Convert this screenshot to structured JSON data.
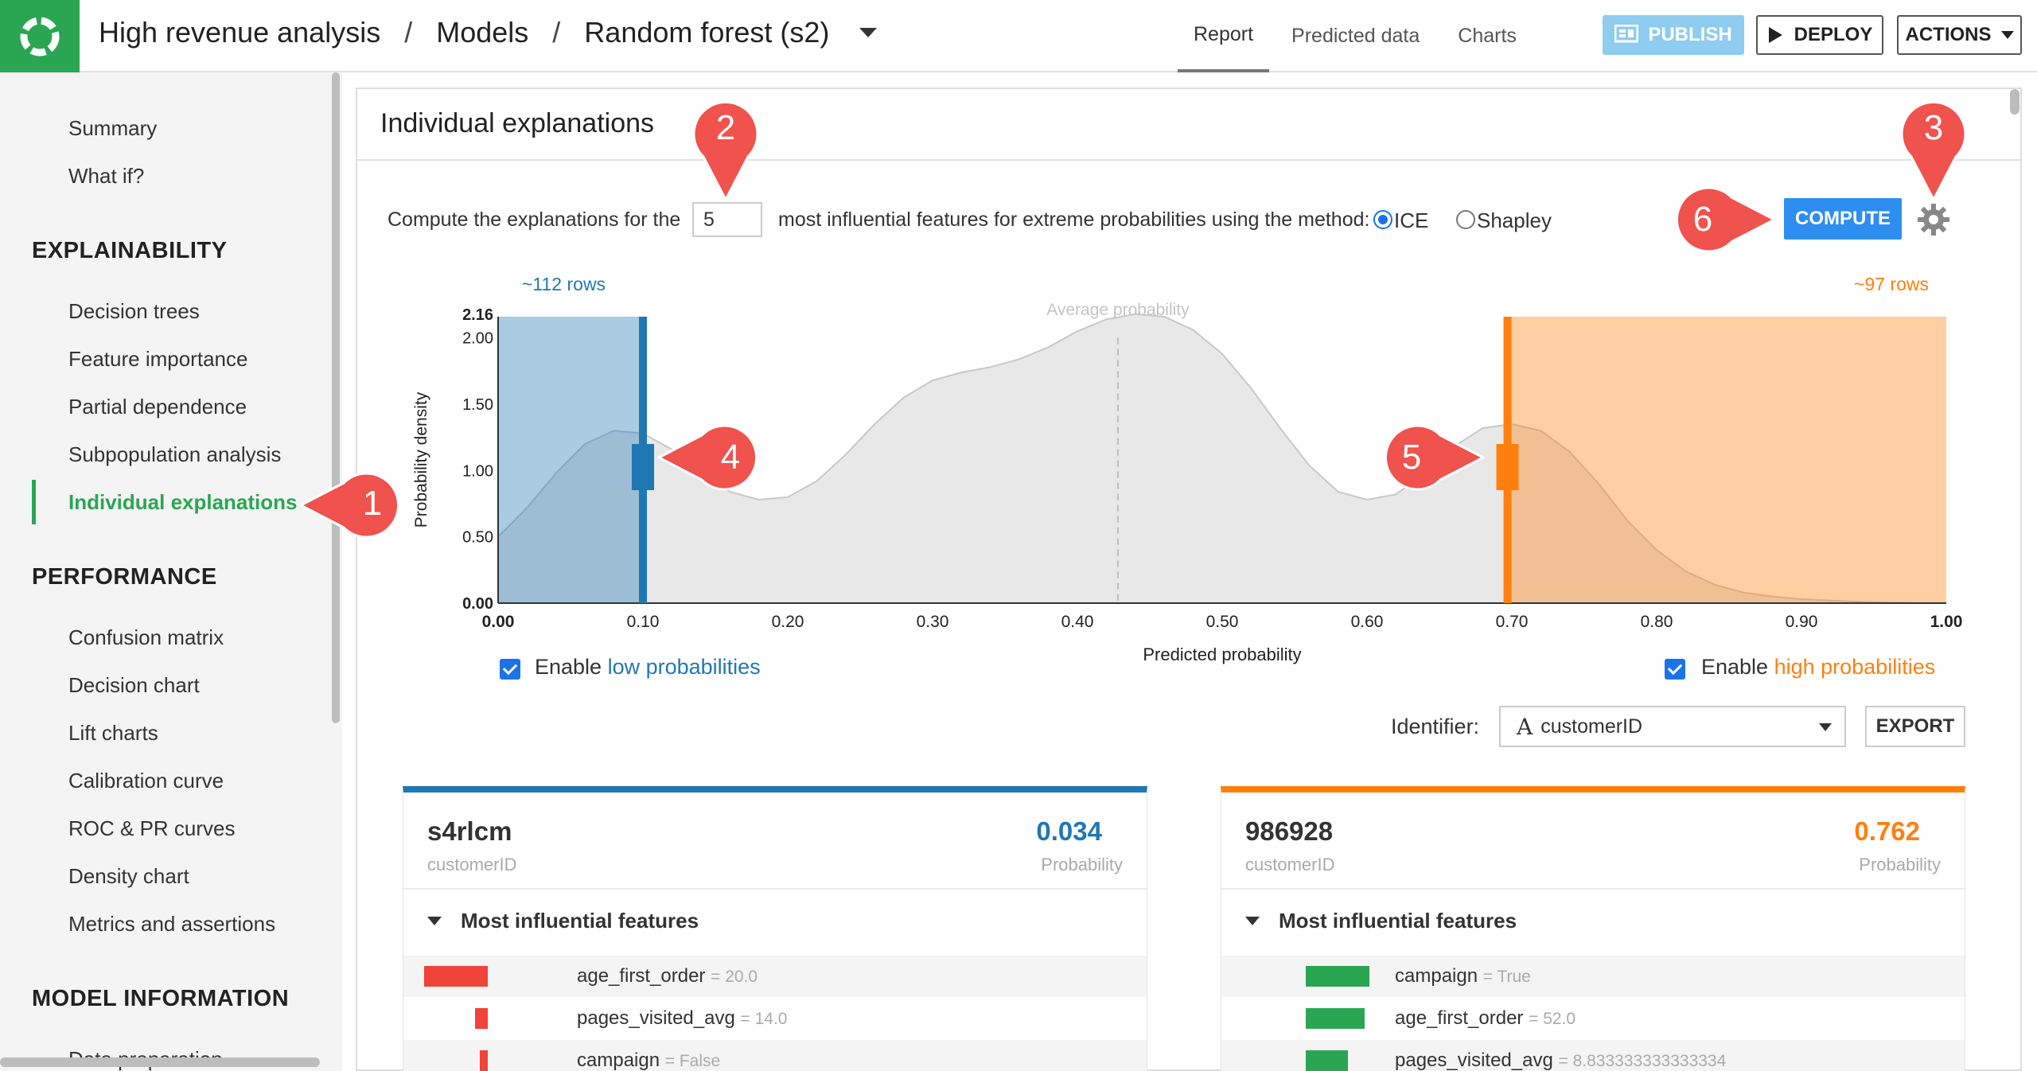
{
  "header": {
    "breadcrumbs": [
      "High revenue analysis",
      "Models",
      "Random forest (s2)"
    ],
    "separator": "/",
    "tabs": [
      {
        "label": "Report",
        "active": true
      },
      {
        "label": "Predicted data",
        "active": false
      },
      {
        "label": "Charts",
        "active": false
      }
    ],
    "publish_label": "PUBLISH",
    "deploy_label": "DEPLOY",
    "actions_label": "ACTIONS"
  },
  "sidebar": {
    "top_items": [
      "Summary",
      "What if?"
    ],
    "sections": [
      {
        "title": "EXPLAINABILITY",
        "items": [
          "Decision trees",
          "Feature importance",
          "Partial dependence",
          "Subpopulation analysis",
          "Individual explanations"
        ]
      },
      {
        "title": "PERFORMANCE",
        "items": [
          "Confusion matrix",
          "Decision chart",
          "Lift charts",
          "Calibration curve",
          "ROC & PR curves",
          "Density chart",
          "Metrics and assertions"
        ]
      },
      {
        "title": "MODEL INFORMATION",
        "items": [
          "Data preparation"
        ]
      }
    ],
    "active_item": "Individual explanations"
  },
  "panel": {
    "title": "Individual explanations",
    "compute_prefix": "Compute the explanations for the",
    "feature_count": "5",
    "compute_suffix": "most influential features for extreme probabilities using the method:",
    "methods": [
      {
        "label": "ICE",
        "selected": true
      },
      {
        "label": "Shapley",
        "selected": false
      }
    ],
    "compute_label": "COMPUTE",
    "low_rows": "~112 rows",
    "high_rows": "~97 rows",
    "enable_low_prefix": "Enable ",
    "enable_low_link": "low probabilities",
    "enable_high_prefix": "Enable ",
    "enable_high_link": "high probabilities",
    "identifier_label": "Identifier:",
    "identifier_value": "customerID",
    "export_label": "EXPORT"
  },
  "chart_data": {
    "type": "area",
    "xlabel": "Predicted probability",
    "ylabel": "Probability density",
    "xlim": [
      0,
      1
    ],
    "ylim": [
      0,
      2.16
    ],
    "x_ticks": [
      "0.00",
      "0.10",
      "0.20",
      "0.30",
      "0.40",
      "0.50",
      "0.60",
      "0.70",
      "0.80",
      "0.90",
      "1.00"
    ],
    "y_ticks": [
      "0.00",
      "0.50",
      "1.00",
      "1.50",
      "2.00",
      "2.16"
    ],
    "average_label": "Average probability",
    "average_x": 0.428,
    "low_threshold": 0.1,
    "high_threshold": 0.697,
    "density": {
      "x": [
        0,
        0.02,
        0.04,
        0.06,
        0.08,
        0.1,
        0.12,
        0.14,
        0.16,
        0.18,
        0.2,
        0.22,
        0.24,
        0.26,
        0.28,
        0.3,
        0.32,
        0.34,
        0.36,
        0.38,
        0.4,
        0.42,
        0.44,
        0.46,
        0.48,
        0.5,
        0.52,
        0.54,
        0.56,
        0.58,
        0.6,
        0.62,
        0.64,
        0.66,
        0.68,
        0.7,
        0.72,
        0.74,
        0.76,
        0.78,
        0.8,
        0.82,
        0.84,
        0.86,
        0.88,
        0.9,
        0.92,
        0.94,
        0.96,
        0.98,
        1.0
      ],
      "y": [
        0.5,
        0.72,
        0.98,
        1.2,
        1.3,
        1.28,
        1.16,
        0.98,
        0.84,
        0.78,
        0.8,
        0.92,
        1.12,
        1.35,
        1.55,
        1.68,
        1.74,
        1.78,
        1.84,
        1.93,
        2.05,
        2.14,
        2.18,
        2.16,
        2.06,
        1.88,
        1.62,
        1.32,
        1.04,
        0.84,
        0.78,
        0.82,
        0.98,
        1.18,
        1.32,
        1.35,
        1.3,
        1.14,
        0.9,
        0.62,
        0.4,
        0.24,
        0.14,
        0.08,
        0.05,
        0.03,
        0.02,
        0.01,
        0.005,
        0.002,
        0.0
      ]
    },
    "colors": {
      "low": "#1f77b4",
      "high": "#ff7f0e",
      "density": "#e8e8e8"
    }
  },
  "cards": [
    {
      "id": "s4rlcm",
      "id_label": "customerID",
      "probability": "0.034",
      "prob_label": "Probability",
      "features_title": "Most influential features",
      "features": [
        {
          "name": "age_first_order",
          "value": "= 20.0",
          "impact": -1.0
        },
        {
          "name": "pages_visited_avg",
          "value": "= 14.0",
          "impact": -0.2
        },
        {
          "name": "campaign",
          "value": "= False",
          "impact": -0.12
        }
      ]
    },
    {
      "id": "986928",
      "id_label": "customerID",
      "probability": "0.762",
      "prob_label": "Probability",
      "features_title": "Most influential features",
      "features": [
        {
          "name": "campaign",
          "value": "= True",
          "impact": 1.0
        },
        {
          "name": "age_first_order",
          "value": "= 52.0",
          "impact": 0.92
        },
        {
          "name": "pages_visited_avg",
          "value": "= 8.833333333333334",
          "impact": 0.66
        }
      ]
    }
  ],
  "callouts": [
    "1",
    "2",
    "3",
    "4",
    "5",
    "6"
  ],
  "colors": {
    "accent": "#2aa653",
    "callout": "#f0524d",
    "compute": "#2d8ef0"
  }
}
